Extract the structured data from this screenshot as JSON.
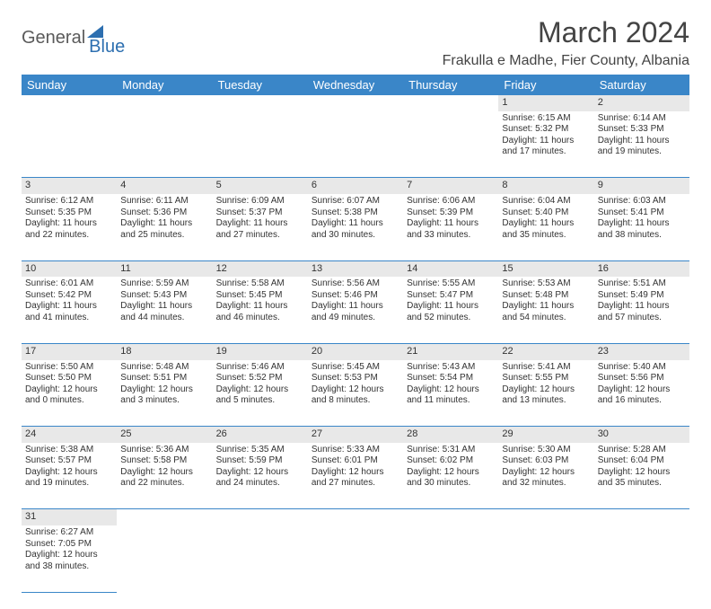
{
  "logo": {
    "part1": "General",
    "part2": "Blue"
  },
  "title": "March 2024",
  "location": "Frakulla e Madhe, Fier County, Albania",
  "colors": {
    "header_bg": "#3a86c8",
    "header_fg": "#ffffff",
    "daynum_bg": "#e8e8e8",
    "row_border": "#3a86c8",
    "logo_gray": "#5a5a5a",
    "logo_blue": "#2d6fb0",
    "page_bg": "#ffffff"
  },
  "weekdays": [
    "Sunday",
    "Monday",
    "Tuesday",
    "Wednesday",
    "Thursday",
    "Friday",
    "Saturday"
  ],
  "weeks": [
    [
      null,
      null,
      null,
      null,
      null,
      {
        "d": "1",
        "sr": "Sunrise: 6:15 AM",
        "ss": "Sunset: 5:32 PM",
        "dl1": "Daylight: 11 hours",
        "dl2": "and 17 minutes."
      },
      {
        "d": "2",
        "sr": "Sunrise: 6:14 AM",
        "ss": "Sunset: 5:33 PM",
        "dl1": "Daylight: 11 hours",
        "dl2": "and 19 minutes."
      }
    ],
    [
      {
        "d": "3",
        "sr": "Sunrise: 6:12 AM",
        "ss": "Sunset: 5:35 PM",
        "dl1": "Daylight: 11 hours",
        "dl2": "and 22 minutes."
      },
      {
        "d": "4",
        "sr": "Sunrise: 6:11 AM",
        "ss": "Sunset: 5:36 PM",
        "dl1": "Daylight: 11 hours",
        "dl2": "and 25 minutes."
      },
      {
        "d": "5",
        "sr": "Sunrise: 6:09 AM",
        "ss": "Sunset: 5:37 PM",
        "dl1": "Daylight: 11 hours",
        "dl2": "and 27 minutes."
      },
      {
        "d": "6",
        "sr": "Sunrise: 6:07 AM",
        "ss": "Sunset: 5:38 PM",
        "dl1": "Daylight: 11 hours",
        "dl2": "and 30 minutes."
      },
      {
        "d": "7",
        "sr": "Sunrise: 6:06 AM",
        "ss": "Sunset: 5:39 PM",
        "dl1": "Daylight: 11 hours",
        "dl2": "and 33 minutes."
      },
      {
        "d": "8",
        "sr": "Sunrise: 6:04 AM",
        "ss": "Sunset: 5:40 PM",
        "dl1": "Daylight: 11 hours",
        "dl2": "and 35 minutes."
      },
      {
        "d": "9",
        "sr": "Sunrise: 6:03 AM",
        "ss": "Sunset: 5:41 PM",
        "dl1": "Daylight: 11 hours",
        "dl2": "and 38 minutes."
      }
    ],
    [
      {
        "d": "10",
        "sr": "Sunrise: 6:01 AM",
        "ss": "Sunset: 5:42 PM",
        "dl1": "Daylight: 11 hours",
        "dl2": "and 41 minutes."
      },
      {
        "d": "11",
        "sr": "Sunrise: 5:59 AM",
        "ss": "Sunset: 5:43 PM",
        "dl1": "Daylight: 11 hours",
        "dl2": "and 44 minutes."
      },
      {
        "d": "12",
        "sr": "Sunrise: 5:58 AM",
        "ss": "Sunset: 5:45 PM",
        "dl1": "Daylight: 11 hours",
        "dl2": "and 46 minutes."
      },
      {
        "d": "13",
        "sr": "Sunrise: 5:56 AM",
        "ss": "Sunset: 5:46 PM",
        "dl1": "Daylight: 11 hours",
        "dl2": "and 49 minutes."
      },
      {
        "d": "14",
        "sr": "Sunrise: 5:55 AM",
        "ss": "Sunset: 5:47 PM",
        "dl1": "Daylight: 11 hours",
        "dl2": "and 52 minutes."
      },
      {
        "d": "15",
        "sr": "Sunrise: 5:53 AM",
        "ss": "Sunset: 5:48 PM",
        "dl1": "Daylight: 11 hours",
        "dl2": "and 54 minutes."
      },
      {
        "d": "16",
        "sr": "Sunrise: 5:51 AM",
        "ss": "Sunset: 5:49 PM",
        "dl1": "Daylight: 11 hours",
        "dl2": "and 57 minutes."
      }
    ],
    [
      {
        "d": "17",
        "sr": "Sunrise: 5:50 AM",
        "ss": "Sunset: 5:50 PM",
        "dl1": "Daylight: 12 hours",
        "dl2": "and 0 minutes."
      },
      {
        "d": "18",
        "sr": "Sunrise: 5:48 AM",
        "ss": "Sunset: 5:51 PM",
        "dl1": "Daylight: 12 hours",
        "dl2": "and 3 minutes."
      },
      {
        "d": "19",
        "sr": "Sunrise: 5:46 AM",
        "ss": "Sunset: 5:52 PM",
        "dl1": "Daylight: 12 hours",
        "dl2": "and 5 minutes."
      },
      {
        "d": "20",
        "sr": "Sunrise: 5:45 AM",
        "ss": "Sunset: 5:53 PM",
        "dl1": "Daylight: 12 hours",
        "dl2": "and 8 minutes."
      },
      {
        "d": "21",
        "sr": "Sunrise: 5:43 AM",
        "ss": "Sunset: 5:54 PM",
        "dl1": "Daylight: 12 hours",
        "dl2": "and 11 minutes."
      },
      {
        "d": "22",
        "sr": "Sunrise: 5:41 AM",
        "ss": "Sunset: 5:55 PM",
        "dl1": "Daylight: 12 hours",
        "dl2": "and 13 minutes."
      },
      {
        "d": "23",
        "sr": "Sunrise: 5:40 AM",
        "ss": "Sunset: 5:56 PM",
        "dl1": "Daylight: 12 hours",
        "dl2": "and 16 minutes."
      }
    ],
    [
      {
        "d": "24",
        "sr": "Sunrise: 5:38 AM",
        "ss": "Sunset: 5:57 PM",
        "dl1": "Daylight: 12 hours",
        "dl2": "and 19 minutes."
      },
      {
        "d": "25",
        "sr": "Sunrise: 5:36 AM",
        "ss": "Sunset: 5:58 PM",
        "dl1": "Daylight: 12 hours",
        "dl2": "and 22 minutes."
      },
      {
        "d": "26",
        "sr": "Sunrise: 5:35 AM",
        "ss": "Sunset: 5:59 PM",
        "dl1": "Daylight: 12 hours",
        "dl2": "and 24 minutes."
      },
      {
        "d": "27",
        "sr": "Sunrise: 5:33 AM",
        "ss": "Sunset: 6:01 PM",
        "dl1": "Daylight: 12 hours",
        "dl2": "and 27 minutes."
      },
      {
        "d": "28",
        "sr": "Sunrise: 5:31 AM",
        "ss": "Sunset: 6:02 PM",
        "dl1": "Daylight: 12 hours",
        "dl2": "and 30 minutes."
      },
      {
        "d": "29",
        "sr": "Sunrise: 5:30 AM",
        "ss": "Sunset: 6:03 PM",
        "dl1": "Daylight: 12 hours",
        "dl2": "and 32 minutes."
      },
      {
        "d": "30",
        "sr": "Sunrise: 5:28 AM",
        "ss": "Sunset: 6:04 PM",
        "dl1": "Daylight: 12 hours",
        "dl2": "and 35 minutes."
      }
    ],
    [
      {
        "d": "31",
        "sr": "Sunrise: 6:27 AM",
        "ss": "Sunset: 7:05 PM",
        "dl1": "Daylight: 12 hours",
        "dl2": "and 38 minutes."
      },
      null,
      null,
      null,
      null,
      null,
      null
    ]
  ]
}
